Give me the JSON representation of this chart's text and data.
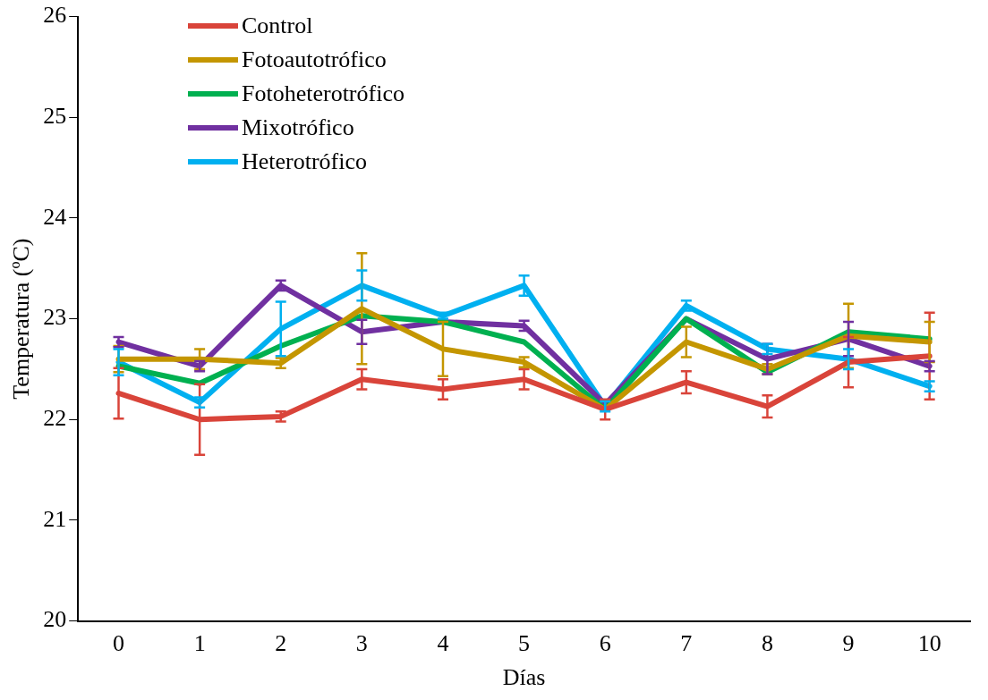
{
  "chart_data": {
    "type": "line",
    "xlabel": "Días",
    "ylabel": "Temperatura (ºC)",
    "categories": [
      "0",
      "1",
      "2",
      "3",
      "4",
      "5",
      "6",
      "7",
      "8",
      "9",
      "10"
    ],
    "ylim": [
      20,
      26
    ],
    "yticks": [
      20,
      21,
      22,
      23,
      24,
      25,
      26
    ],
    "grid": false,
    "legend": "top left",
    "marker": "none",
    "line_style": "solid",
    "series": [
      {
        "name": "Control",
        "color": "#d9443a",
        "values": [
          22.26,
          22.0,
          22.03,
          22.4,
          22.3,
          22.4,
          22.1,
          22.37,
          22.13,
          22.57,
          22.63
        ],
        "errors": [
          0.25,
          0.35,
          0.05,
          0.1,
          0.1,
          0.1,
          0.1,
          0.11,
          0.11,
          0.25,
          0.43
        ]
      },
      {
        "name": "Fotoautotrófico",
        "color": "#c49600",
        "values": [
          22.6,
          22.6,
          22.56,
          23.1,
          22.7,
          22.57,
          22.1,
          22.77,
          22.5,
          22.83,
          22.77
        ],
        "errors": [
          0.13,
          0.1,
          0.05,
          0.55,
          0.27,
          0.05,
          null,
          0.15,
          0.05,
          0.32,
          0.2
        ]
      },
      {
        "name": "Fotoheterotrófico",
        "color": "#00b050",
        "values": [
          22.53,
          22.36,
          22.73,
          23.03,
          22.97,
          22.77,
          22.1,
          23.0,
          22.47,
          22.87,
          22.8
        ],
        "errors": [
          null,
          null,
          null,
          null,
          null,
          null,
          null,
          null,
          null,
          null,
          null
        ]
      },
      {
        "name": "Mixotrófico",
        "color": "#7030a0",
        "values": [
          22.77,
          22.53,
          23.33,
          22.87,
          22.97,
          22.93,
          22.15,
          23.0,
          22.6,
          22.8,
          22.53
        ],
        "errors": [
          0.05,
          0.05,
          0.05,
          0.12,
          null,
          0.05,
          null,
          null,
          0.15,
          0.17,
          0.05
        ]
      },
      {
        "name": "Heterotrófico",
        "color": "#00b0f0",
        "values": [
          22.57,
          22.17,
          22.9,
          23.33,
          23.03,
          23.33,
          22.13,
          23.13,
          22.7,
          22.6,
          22.33
        ],
        "errors": [
          0.13,
          0.05,
          0.27,
          0.15,
          0.03,
          0.1,
          0.05,
          0.05,
          0.05,
          0.1,
          0.05
        ]
      }
    ]
  }
}
